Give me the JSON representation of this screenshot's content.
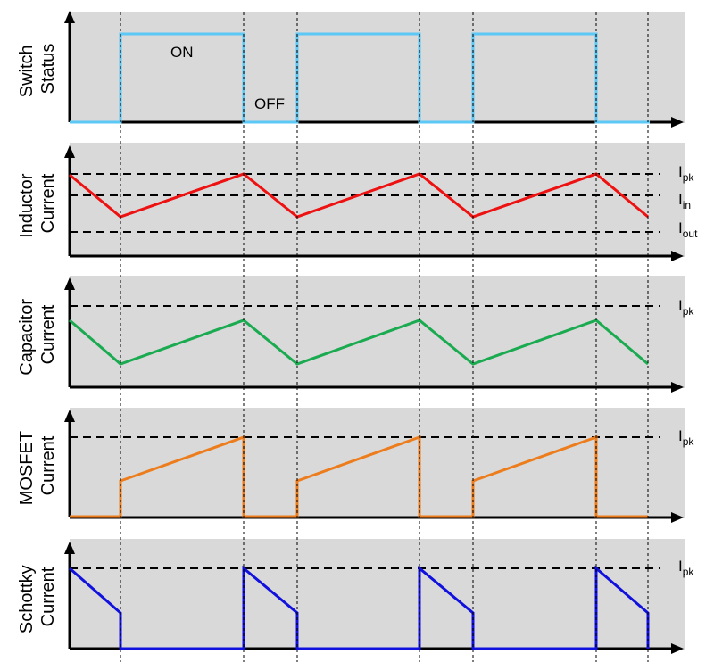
{
  "diagram": {
    "switch_on_label": "ON",
    "switch_off_label": "OFF",
    "panels": [
      {
        "id": "switch",
        "ylabel": [
          "Switch",
          "Status"
        ],
        "color": "#5bc8f5",
        "levels": [],
        "waveform": "switch"
      },
      {
        "id": "inductor",
        "ylabel": [
          "Inductor",
          "Current"
        ],
        "color": "#ee1111",
        "levels": [
          {
            "main": "I",
            "sub": "pk"
          },
          {
            "main": "I",
            "sub": "in"
          },
          {
            "main": "I",
            "sub": "out"
          }
        ],
        "waveform": "inductor"
      },
      {
        "id": "capacitor",
        "ylabel": [
          "Capacitor",
          "Current"
        ],
        "color": "#1aaa50",
        "levels": [
          {
            "main": "I",
            "sub": "pk"
          }
        ],
        "waveform": "capacitor"
      },
      {
        "id": "mosfet",
        "ylabel": [
          "MOSFET",
          "Current"
        ],
        "color": "#ed7d1c",
        "levels": [
          {
            "main": "I",
            "sub": "pk"
          }
        ],
        "waveform": "mosfet"
      },
      {
        "id": "schottky",
        "ylabel": [
          "Schottky",
          "Current"
        ],
        "color": "#1111dd",
        "levels": [
          {
            "main": "I",
            "sub": "pk"
          }
        ],
        "waveform": "schottky"
      }
    ]
  }
}
